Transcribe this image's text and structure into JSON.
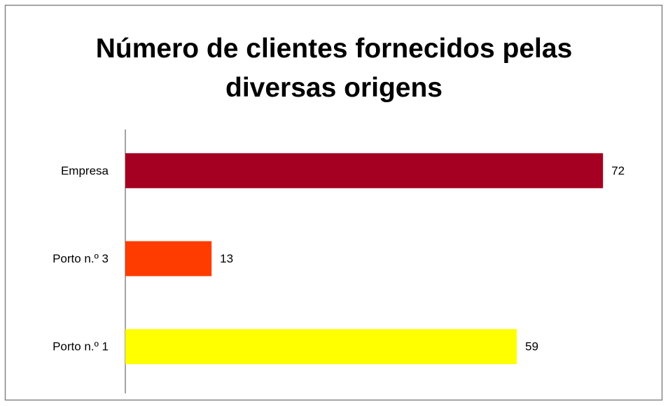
{
  "chart_data": {
    "type": "bar",
    "orientation": "horizontal",
    "title": "Número de clientes fornecidos pelas diversas origens",
    "categories": [
      "Empresa",
      "Porto n.º 3",
      "Porto n.º 1"
    ],
    "values": [
      72,
      13,
      59
    ],
    "colors": [
      "#a50021",
      "#ff3c00",
      "#ffff00"
    ],
    "xlim": [
      0,
      80
    ]
  }
}
